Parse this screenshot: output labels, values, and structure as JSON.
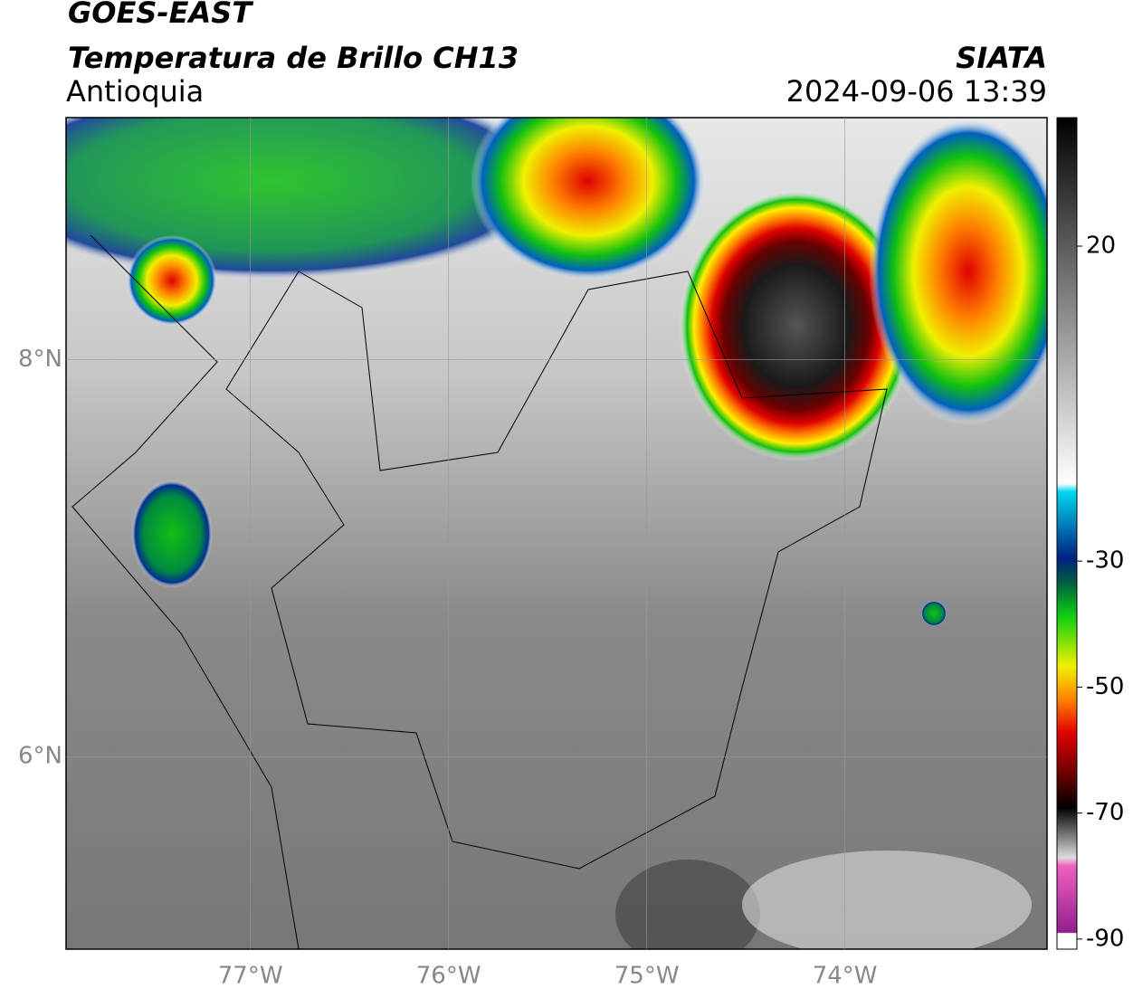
{
  "header": {
    "title": "GOES-EAST",
    "subtitle": "Temperatura de Brillo CH13",
    "region": "Antioquia",
    "source": "SIATA",
    "datetime": "2024-09-06 13:39"
  },
  "map": {
    "xlim": [
      -77.93,
      -72.98
    ],
    "ylim": [
      5.03,
      9.22
    ],
    "xticks": [
      {
        "value": -77,
        "label": "77°W"
      },
      {
        "value": -76,
        "label": "76°W"
      },
      {
        "value": -75,
        "label": "75°W"
      },
      {
        "value": -74,
        "label": "74°W"
      }
    ],
    "yticks": [
      {
        "value": 8,
        "label": "8°N"
      },
      {
        "value": 6,
        "label": "6°N"
      }
    ],
    "grid": true
  },
  "colorbar": {
    "lim": [
      -91.6,
      40.4
    ],
    "ticks": [
      20,
      -30,
      -50,
      -70,
      -90
    ]
  }
}
